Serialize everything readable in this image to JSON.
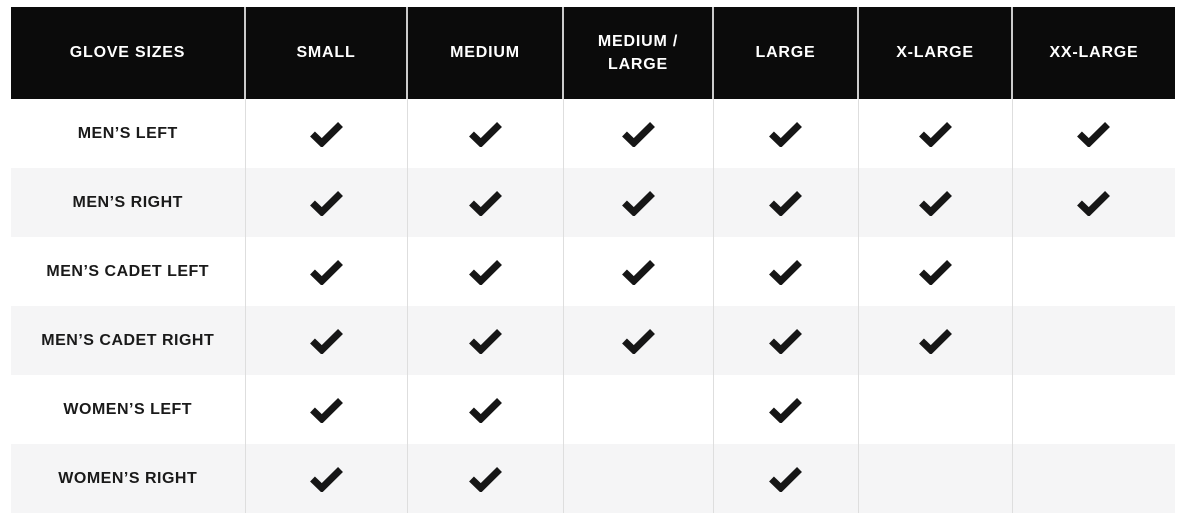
{
  "table": {
    "header": {
      "corner_label": "GLOVE SIZES",
      "columns": [
        "SMALL",
        "MEDIUM",
        "MEDIUM / LARGE",
        "LARGE",
        "X-LARGE",
        "XX-LARGE"
      ]
    },
    "rows": [
      {
        "label": "MEN’S LEFT",
        "availability": [
          true,
          true,
          true,
          true,
          true,
          true
        ]
      },
      {
        "label": "MEN’S RIGHT",
        "availability": [
          true,
          true,
          true,
          true,
          true,
          true
        ]
      },
      {
        "label": "MEN’S CADET LEFT",
        "availability": [
          true,
          true,
          true,
          true,
          true,
          false
        ]
      },
      {
        "label": "MEN’S CADET RIGHT",
        "availability": [
          true,
          true,
          true,
          true,
          true,
          false
        ]
      },
      {
        "label": "WOMEN’S LEFT",
        "availability": [
          true,
          true,
          false,
          true,
          false,
          false
        ]
      },
      {
        "label": "WOMEN’S RIGHT",
        "availability": [
          true,
          true,
          false,
          true,
          false,
          false
        ]
      }
    ],
    "check_icon": "checkmark-icon",
    "colors": {
      "header_bg": "#0b0b0b",
      "header_text": "#ffffff",
      "row_bg": "#ffffff",
      "row_alt_bg": "#f5f5f6",
      "label_text": "#1a1a1a",
      "check": "#161616",
      "header_separator": "#cccccc",
      "body_separator": "#dedede"
    }
  },
  "chart_data": {
    "type": "table",
    "title": "GLOVE SIZES",
    "columns": [
      "SMALL",
      "MEDIUM",
      "MEDIUM / LARGE",
      "LARGE",
      "X-LARGE",
      "XX-LARGE"
    ],
    "row_labels": [
      "MEN’S LEFT",
      "MEN’S RIGHT",
      "MEN’S CADET LEFT",
      "MEN’S CADET RIGHT",
      "WOMEN’S LEFT",
      "WOMEN’S RIGHT"
    ],
    "values": [
      [
        true,
        true,
        true,
        true,
        true,
        true
      ],
      [
        true,
        true,
        true,
        true,
        true,
        true
      ],
      [
        true,
        true,
        true,
        true,
        true,
        false
      ],
      [
        true,
        true,
        true,
        true,
        true,
        false
      ],
      [
        true,
        true,
        false,
        true,
        false,
        false
      ],
      [
        true,
        true,
        false,
        true,
        false,
        false
      ]
    ],
    "cell_true_glyph": "checkmark",
    "cell_false_glyph": "blank"
  }
}
